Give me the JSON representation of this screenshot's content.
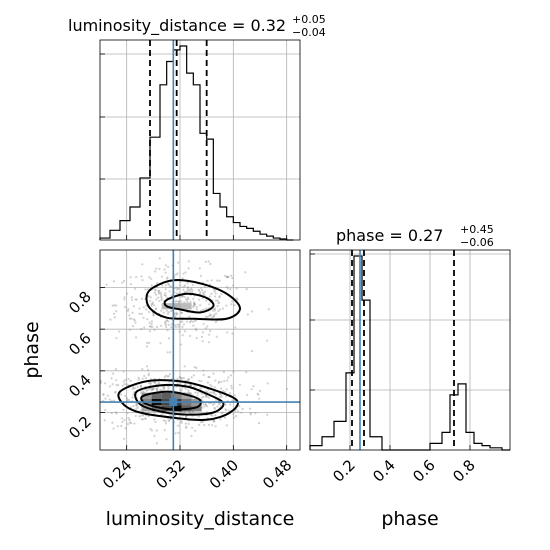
{
  "chart_data": {
    "type": "corner",
    "parameters": [
      "luminosity_distance",
      "phase"
    ],
    "truth": {
      "luminosity_distance": 0.31,
      "phase": 0.25
    },
    "colors": {
      "truth": "#4682b4",
      "hist": "#000000",
      "points": "#9a9a9a",
      "contour": "#000000"
    },
    "panels": {
      "hist_luminosity_distance": {
        "title_label": "luminosity_distance",
        "title_value": "0.32",
        "title_upper": "+0.05",
        "title_lower": "−0.04",
        "xlim": [
          0.2,
          0.5
        ],
        "quantiles": [
          0.275,
          0.315,
          0.36
        ],
        "bin_edges": [
          0.2,
          0.215,
          0.23,
          0.245,
          0.26,
          0.275,
          0.29,
          0.3,
          0.31,
          0.32,
          0.33,
          0.34,
          0.35,
          0.36,
          0.37,
          0.38,
          0.39,
          0.4,
          0.41,
          0.42,
          0.43,
          0.44,
          0.45,
          0.46,
          0.47,
          0.48,
          0.49
        ],
        "counts": [
          0.01,
          0.05,
          0.1,
          0.17,
          0.32,
          0.53,
          0.8,
          0.92,
          0.98,
          1.0,
          0.86,
          0.8,
          0.55,
          0.52,
          0.24,
          0.17,
          0.12,
          0.09,
          0.07,
          0.06,
          0.045,
          0.03,
          0.02,
          0.01,
          0.005,
          0.0
        ]
      },
      "hist_phase": {
        "title_label": "phase",
        "title_value": "0.27",
        "title_upper": "+0.45",
        "title_lower": "−0.06",
        "xlim": [
          0.0,
          1.0
        ],
        "quantiles": [
          0.21,
          0.27,
          0.72
        ],
        "bin_edges": [
          0.0,
          0.06,
          0.12,
          0.18,
          0.22,
          0.26,
          0.3,
          0.36,
          0.42,
          0.48,
          0.54,
          0.6,
          0.66,
          0.7,
          0.74,
          0.78,
          0.82,
          0.86,
          0.9,
          0.96,
          1.0
        ],
        "counts": [
          0.02,
          0.06,
          0.13,
          0.35,
          0.88,
          0.68,
          0.06,
          0.0,
          0.0,
          0.0,
          0.0,
          0.03,
          0.08,
          0.25,
          0.3,
          0.08,
          0.03,
          0.02,
          0.01,
          0.0
        ]
      },
      "joint": {
        "xlim": [
          0.2,
          0.5
        ],
        "ylim": [
          0.02,
          0.98
        ],
        "clusters": [
          {
            "cx": 0.32,
            "cy": 0.72,
            "sx": 0.04,
            "sy": 0.08,
            "n": 420
          },
          {
            "cx": 0.31,
            "cy": 0.26,
            "sx": 0.045,
            "sy": 0.06,
            "n": 680
          }
        ],
        "contours": [
          [
            [
              0.28,
              0.8
            ],
            [
              0.31,
              0.835
            ],
            [
              0.35,
              0.82
            ],
            [
              0.39,
              0.77
            ],
            [
              0.41,
              0.7
            ],
            [
              0.39,
              0.65
            ],
            [
              0.34,
              0.65
            ],
            [
              0.3,
              0.655
            ],
            [
              0.275,
              0.7
            ],
            [
              0.27,
              0.76
            ]
          ],
          [
            [
              0.3,
              0.74
            ],
            [
              0.33,
              0.77
            ],
            [
              0.36,
              0.75
            ],
            [
              0.37,
              0.71
            ],
            [
              0.35,
              0.68
            ],
            [
              0.32,
              0.695
            ],
            [
              0.3,
              0.71
            ]
          ],
          [
            [
              0.23,
              0.3
            ],
            [
              0.27,
              0.35
            ],
            [
              0.32,
              0.35
            ],
            [
              0.36,
              0.32
            ],
            [
              0.405,
              0.26
            ],
            [
              0.395,
              0.2
            ],
            [
              0.36,
              0.165
            ],
            [
              0.31,
              0.175
            ],
            [
              0.26,
              0.2
            ],
            [
              0.235,
              0.24
            ]
          ],
          [
            [
              0.255,
              0.3
            ],
            [
              0.29,
              0.33
            ],
            [
              0.33,
              0.325
            ],
            [
              0.36,
              0.29
            ],
            [
              0.385,
              0.245
            ],
            [
              0.37,
              0.2
            ],
            [
              0.33,
              0.19
            ],
            [
              0.29,
              0.205
            ],
            [
              0.26,
              0.24
            ]
          ],
          [
            [
              0.265,
              0.28
            ],
            [
              0.3,
              0.3
            ],
            [
              0.33,
              0.285
            ],
            [
              0.35,
              0.26
            ],
            [
              0.345,
              0.225
            ],
            [
              0.31,
              0.215
            ],
            [
              0.28,
              0.23
            ],
            [
              0.265,
              0.25
            ]
          ]
        ],
        "density_cells": [
          {
            "x": 0.27,
            "y": 0.28,
            "v": 0.35
          },
          {
            "x": 0.285,
            "y": 0.28,
            "v": 0.55
          },
          {
            "x": 0.3,
            "y": 0.28,
            "v": 0.6
          },
          {
            "x": 0.315,
            "y": 0.28,
            "v": 0.45
          },
          {
            "x": 0.33,
            "y": 0.28,
            "v": 0.3
          },
          {
            "x": 0.27,
            "y": 0.25,
            "v": 0.45
          },
          {
            "x": 0.285,
            "y": 0.25,
            "v": 0.95
          },
          {
            "x": 0.3,
            "y": 0.25,
            "v": 0.7
          },
          {
            "x": 0.315,
            "y": 0.25,
            "v": 0.75
          },
          {
            "x": 0.33,
            "y": 0.25,
            "v": 0.5
          },
          {
            "x": 0.345,
            "y": 0.25,
            "v": 0.35
          },
          {
            "x": 0.27,
            "y": 0.22,
            "v": 0.3
          },
          {
            "x": 0.285,
            "y": 0.22,
            "v": 0.55
          },
          {
            "x": 0.3,
            "y": 0.22,
            "v": 0.65
          },
          {
            "x": 0.315,
            "y": 0.22,
            "v": 0.98
          },
          {
            "x": 0.33,
            "y": 0.22,
            "v": 0.6
          },
          {
            "x": 0.345,
            "y": 0.22,
            "v": 0.45
          },
          {
            "x": 0.3,
            "y": 0.71,
            "v": 0.2
          },
          {
            "x": 0.315,
            "y": 0.71,
            "v": 0.25
          },
          {
            "x": 0.33,
            "y": 0.71,
            "v": 0.2
          }
        ]
      }
    },
    "axes": {
      "x_luminosity_distance": {
        "label": "luminosity_distance",
        "ticks": [
          0.24,
          0.32,
          0.4,
          0.48
        ],
        "tick_labels": [
          "0.24",
          "0.32",
          "0.40",
          "0.48"
        ]
      },
      "y_phase": {
        "label": "phase",
        "ticks": [
          0.2,
          0.4,
          0.6,
          0.8
        ],
        "tick_labels": [
          "0.2",
          "0.4",
          "0.6",
          "0.8"
        ]
      },
      "x_phase": {
        "label": "phase",
        "ticks": [
          0.2,
          0.4,
          0.6,
          0.8
        ],
        "tick_labels": [
          "0.2",
          "0.4",
          "0.6",
          "0.8"
        ]
      }
    },
    "grid": true
  }
}
